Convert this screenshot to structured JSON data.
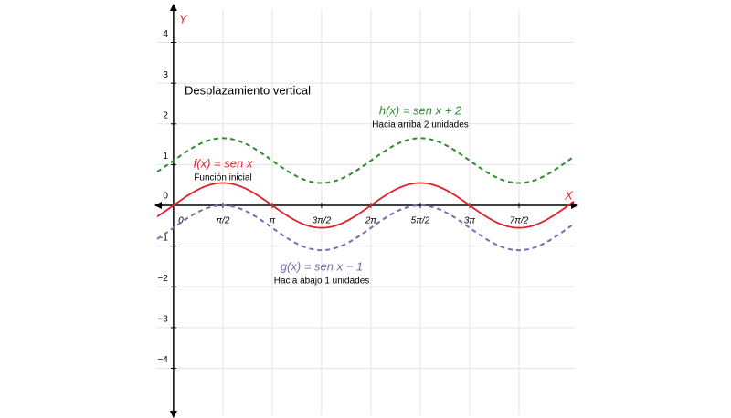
{
  "chart_data": {
    "type": "function",
    "title": "Desplazamiento vertical",
    "xlabel": "X",
    "ylabel": "Y",
    "xlim": [
      -0.52,
      12.74
    ],
    "ylim": [
      -5.22,
      4.93
    ],
    "xticks": [
      {
        "value": 0,
        "label": "0"
      },
      {
        "value": 1.5708,
        "label": "π/2"
      },
      {
        "value": 3.1416,
        "label": "π"
      },
      {
        "value": 4.7124,
        "label": "3π/2"
      },
      {
        "value": 6.2832,
        "label": "2π"
      },
      {
        "value": 7.854,
        "label": "5π/2"
      },
      {
        "value": 9.4248,
        "label": "3π"
      },
      {
        "value": 10.9956,
        "label": "7π/2"
      }
    ],
    "yticks": [
      {
        "value": -4,
        "label": "−4"
      },
      {
        "value": -3,
        "label": "−3"
      },
      {
        "value": -2,
        "label": "−2"
      },
      {
        "value": -1,
        "label": "−1"
      },
      0,
      1,
      2,
      3,
      4
    ],
    "grid": true,
    "series": [
      {
        "name": "f(x) = sen x",
        "note": "Función inicial",
        "color": "#e0202a",
        "dashed": false,
        "amplitude": 0.55,
        "shift": 0
      },
      {
        "name": "h(x) = sen x + 2",
        "note": "Hacia arriba 2 unidades",
        "color": "#2e8b2e",
        "dashed": true,
        "amplitude": 0.55,
        "shift": 1.1
      },
      {
        "name": "g(x) = sen x − 1",
        "note": "Hacia abajo 1 unidades",
        "color": "#7a6bb2",
        "dashed": true,
        "amplitude": 0.55,
        "shift": -0.55
      }
    ]
  }
}
